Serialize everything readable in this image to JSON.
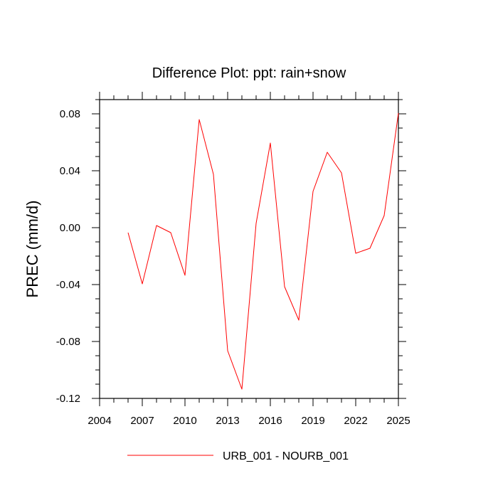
{
  "chart_data": {
    "type": "line",
    "title": "Difference Plot: ppt: rain+snow",
    "xlabel": "",
    "ylabel": "PREC  (mm/d)",
    "xlim": [
      2004,
      2025
    ],
    "ylim": [
      -0.12,
      0.09
    ],
    "x_ticks": [
      2004,
      2007,
      2010,
      2013,
      2016,
      2019,
      2022,
      2025
    ],
    "x_tick_labels": [
      "2004",
      "2007",
      "2010",
      "2013",
      "2016",
      "2019",
      "2022",
      "2025"
    ],
    "y_ticks": [
      0.08,
      0.04,
      0.0,
      -0.04,
      -0.08,
      -0.12
    ],
    "y_tick_labels": [
      "0.08",
      "0.04",
      "0.00",
      "-0.04",
      "-0.08",
      "-0.12"
    ],
    "grid": false,
    "legend_position": "bottom-center",
    "series": [
      {
        "name": "URB_001 - NOURB_001",
        "color": "#ff0000",
        "x": [
          2006,
          2007,
          2008,
          2009,
          2010,
          2011,
          2012,
          2013,
          2014,
          2015,
          2016,
          2017,
          2018,
          2019,
          2020,
          2021,
          2022,
          2023,
          2024,
          2025
        ],
        "values": [
          -0.0035,
          -0.0395,
          0.0015,
          -0.0035,
          -0.0335,
          0.076,
          0.0375,
          -0.0865,
          -0.1135,
          0.003,
          0.0595,
          -0.0415,
          -0.065,
          0.0255,
          0.053,
          0.0385,
          -0.018,
          -0.0145,
          0.0085,
          0.0805
        ]
      }
    ]
  }
}
